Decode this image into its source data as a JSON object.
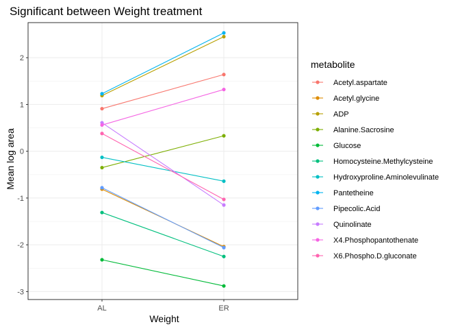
{
  "chart_data": {
    "type": "line",
    "title": "Significant between Weight treatment",
    "xlabel": "Weight",
    "ylabel": "Mean log area",
    "categories": [
      "AL",
      "ER"
    ],
    "ylim": [
      -3.17,
      2.75
    ],
    "yticks": [
      2,
      1,
      0,
      -1,
      -2,
      -3
    ],
    "ytick_labels": [
      "2",
      "1",
      "0",
      "-1",
      "-2",
      "-3"
    ],
    "grid": true,
    "legend_title": "metabolite",
    "legend_position": "right",
    "series": [
      {
        "name": "Acetyl.aspartate",
        "color": "#F8766D",
        "values": [
          0.91,
          1.64
        ]
      },
      {
        "name": "Acetyl.glycine",
        "color": "#DE8C00",
        "values": [
          -0.81,
          -2.04
        ]
      },
      {
        "name": "ADP",
        "color": "#B79F00",
        "values": [
          1.19,
          2.45
        ]
      },
      {
        "name": "Alanine.Sacrosine",
        "color": "#7CAE00",
        "values": [
          -0.35,
          0.33
        ]
      },
      {
        "name": "Glucose",
        "color": "#00BA38",
        "values": [
          -2.32,
          -2.88
        ]
      },
      {
        "name": "Homocysteine.Methylcysteine",
        "color": "#00BF7D",
        "values": [
          -1.31,
          -2.25
        ]
      },
      {
        "name": "Hydroxyproline.Aminolevulinate",
        "color": "#00BFC4",
        "values": [
          -0.13,
          -0.64
        ]
      },
      {
        "name": "Pantetheine",
        "color": "#00B4F0",
        "values": [
          1.23,
          2.53
        ]
      },
      {
        "name": "Pipecolic.Acid",
        "color": "#619CFF",
        "values": [
          -0.78,
          -2.06
        ]
      },
      {
        "name": "Quinolinate",
        "color": "#C77CFF",
        "values": [
          0.61,
          -1.15
        ]
      },
      {
        "name": "X4.Phosphopantothenate",
        "color": "#F564E3",
        "values": [
          0.56,
          1.32
        ]
      },
      {
        "name": "X6.Phospho.D.gluconate",
        "color": "#FF64B0",
        "values": [
          0.38,
          -1.03
        ]
      }
    ]
  }
}
